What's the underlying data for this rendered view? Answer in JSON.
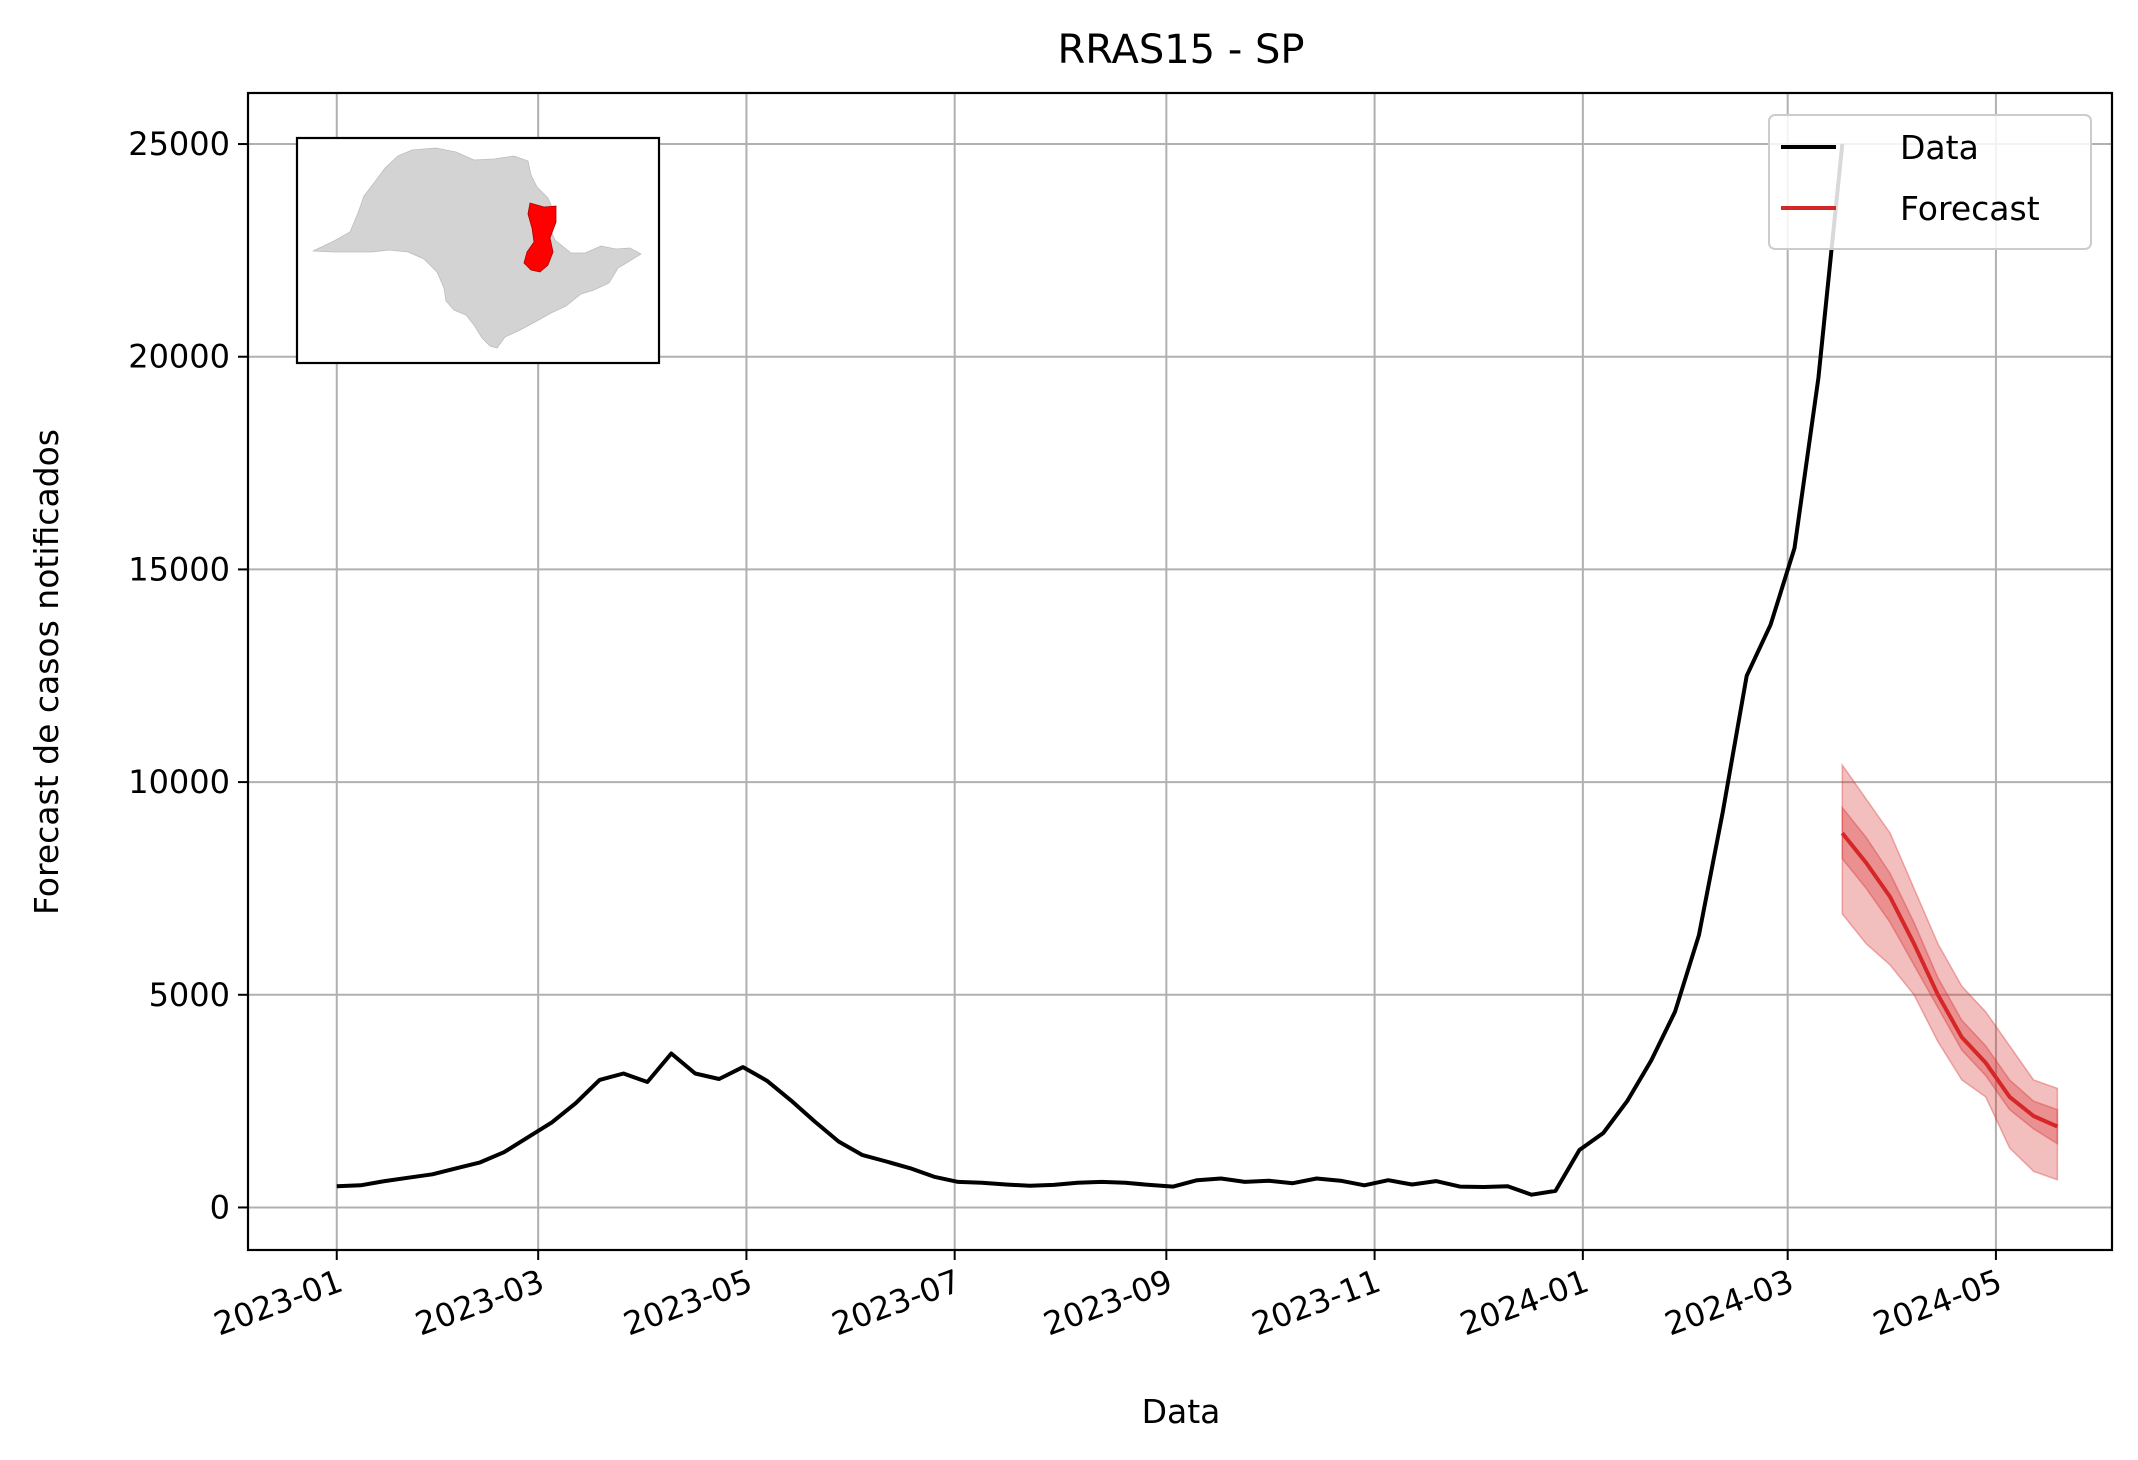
{
  "chart_data": {
    "type": "line",
    "title": "RRAS15 - SP",
    "xlabel": "Data",
    "ylabel": "Forecast de casos notificados",
    "grid": true,
    "legend_position": "upper-right",
    "ylim": [
      -1000,
      26200
    ],
    "xlim": [
      "2022-12-06",
      "2024-06-04"
    ],
    "yticks": [
      0,
      5000,
      10000,
      15000,
      20000,
      25000
    ],
    "xticks": [
      "2023-01",
      "2023-03",
      "2023-05",
      "2023-07",
      "2023-09",
      "2023-11",
      "2024-01",
      "2024-03",
      "2024-05"
    ],
    "xtick_rotation": 20,
    "legend": [
      {
        "label": "Data",
        "color": "#000000"
      },
      {
        "label": "Forecast",
        "color": "#d62728"
      }
    ],
    "series": [
      {
        "name": "Data",
        "color": "#000000",
        "x": [
          "2023-01-01",
          "2023-01-08",
          "2023-01-15",
          "2023-01-22",
          "2023-01-29",
          "2023-02-05",
          "2023-02-12",
          "2023-02-19",
          "2023-02-26",
          "2023-03-05",
          "2023-03-12",
          "2023-03-19",
          "2023-03-26",
          "2023-04-02",
          "2023-04-09",
          "2023-04-16",
          "2023-04-23",
          "2023-04-30",
          "2023-05-07",
          "2023-05-14",
          "2023-05-21",
          "2023-05-28",
          "2023-06-04",
          "2023-06-11",
          "2023-06-18",
          "2023-06-25",
          "2023-07-02",
          "2023-07-09",
          "2023-07-16",
          "2023-07-23",
          "2023-07-30",
          "2023-08-06",
          "2023-08-13",
          "2023-08-20",
          "2023-08-27",
          "2023-09-03",
          "2023-09-10",
          "2023-09-17",
          "2023-09-24",
          "2023-10-01",
          "2023-10-08",
          "2023-10-15",
          "2023-10-22",
          "2023-10-29",
          "2023-11-05",
          "2023-11-12",
          "2023-11-19",
          "2023-11-26",
          "2023-12-03",
          "2023-12-10",
          "2023-12-17",
          "2023-12-24",
          "2023-12-31",
          "2024-01-07",
          "2024-01-14",
          "2024-01-21",
          "2024-01-28",
          "2024-02-04",
          "2024-02-11",
          "2024-02-18",
          "2024-02-25",
          "2024-03-03",
          "2024-03-10",
          "2024-03-17"
        ],
        "y": [
          500,
          520,
          620,
          700,
          780,
          920,
          1060,
          1300,
          1650,
          2000,
          2450,
          3000,
          3150,
          2950,
          3620,
          3150,
          3020,
          3300,
          2980,
          2520,
          2020,
          1550,
          1230,
          1080,
          920,
          720,
          600,
          580,
          540,
          510,
          530,
          580,
          600,
          580,
          530,
          490,
          640,
          680,
          600,
          630,
          570,
          680,
          630,
          520,
          640,
          540,
          620,
          490,
          480,
          500,
          300,
          390,
          1350,
          1750,
          2500,
          3450,
          4600,
          6400,
          9300,
          12500,
          13700,
          15500,
          19500,
          25000
        ]
      },
      {
        "name": "Forecast",
        "color": "#d62728",
        "x": [
          "2024-03-17",
          "2024-03-24",
          "2024-03-31",
          "2024-04-07",
          "2024-04-14",
          "2024-04-21",
          "2024-04-28",
          "2024-05-05",
          "2024-05-12",
          "2024-05-19"
        ],
        "y": [
          8800,
          8100,
          7300,
          6200,
          5000,
          4000,
          3400,
          2600,
          2150,
          1900
        ],
        "band_inner_low": [
          8200,
          7500,
          6700,
          5700,
          4700,
          3700,
          3100,
          2300,
          1850,
          1500
        ],
        "band_inner_high": [
          9400,
          8700,
          7850,
          6700,
          5400,
          4400,
          3800,
          3000,
          2500,
          2300
        ],
        "band_outer_low": [
          6900,
          6200,
          5700,
          5000,
          3900,
          3000,
          2600,
          1400,
          850,
          650
        ],
        "band_outer_high": [
          10400,
          9600,
          8800,
          7500,
          6200,
          5200,
          4600,
          3800,
          3000,
          2800
        ]
      }
    ]
  }
}
